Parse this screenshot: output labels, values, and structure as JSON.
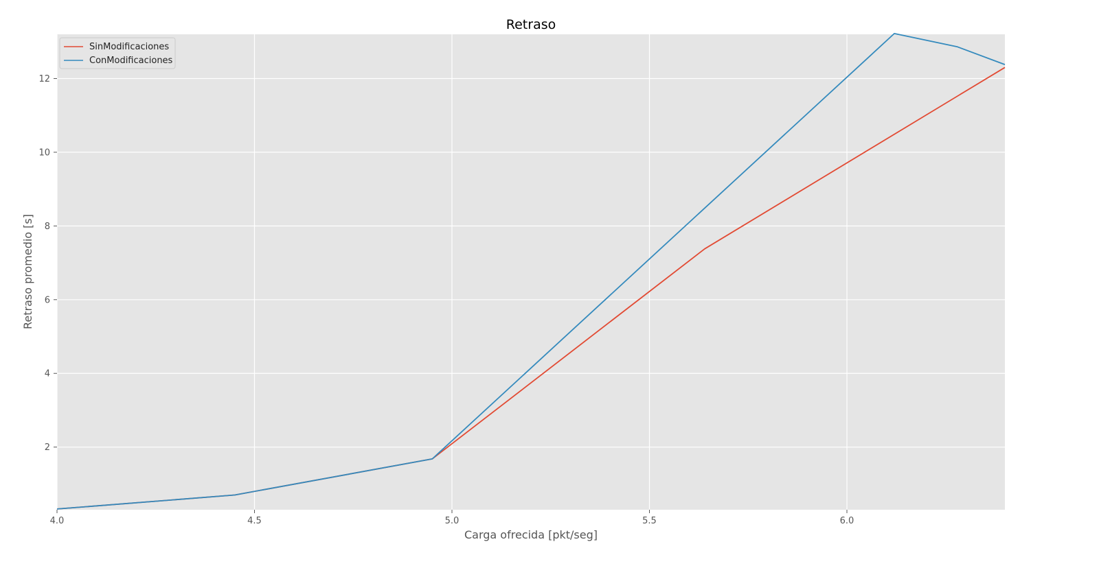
{
  "chart_data": {
    "type": "line",
    "title": "Retraso",
    "xlabel": "Carga ofrecida [pkt/seg]",
    "ylabel": "Retraso promedio [s]",
    "xlim": [
      4.0,
      6.4
    ],
    "ylim": [
      0.3,
      13.2
    ],
    "xticks": [
      4.0,
      4.5,
      5.0,
      5.5,
      6.0
    ],
    "xtick_labels": [
      "4.0",
      "4.5",
      "5.0",
      "5.5",
      "6.0"
    ],
    "yticks": [
      2,
      4,
      6,
      8,
      10,
      12
    ],
    "ytick_labels": [
      "2",
      "4",
      "6",
      "8",
      "10",
      "12"
    ],
    "grid": true,
    "legend_position": "top-left",
    "background": "#e5e5e5",
    "series": [
      {
        "name": "SinModificaciones",
        "color": "#e24a33",
        "x": [
          4.0,
          4.45,
          4.95,
          5.64,
          6.4
        ],
        "y": [
          0.32,
          0.7,
          1.68,
          7.38,
          12.3
        ]
      },
      {
        "name": "ConModificaciones",
        "color": "#348abd",
        "x": [
          4.0,
          4.45,
          4.95,
          6.12,
          6.28,
          6.4
        ],
        "y": [
          0.32,
          0.7,
          1.68,
          13.22,
          12.86,
          12.38
        ]
      }
    ]
  }
}
